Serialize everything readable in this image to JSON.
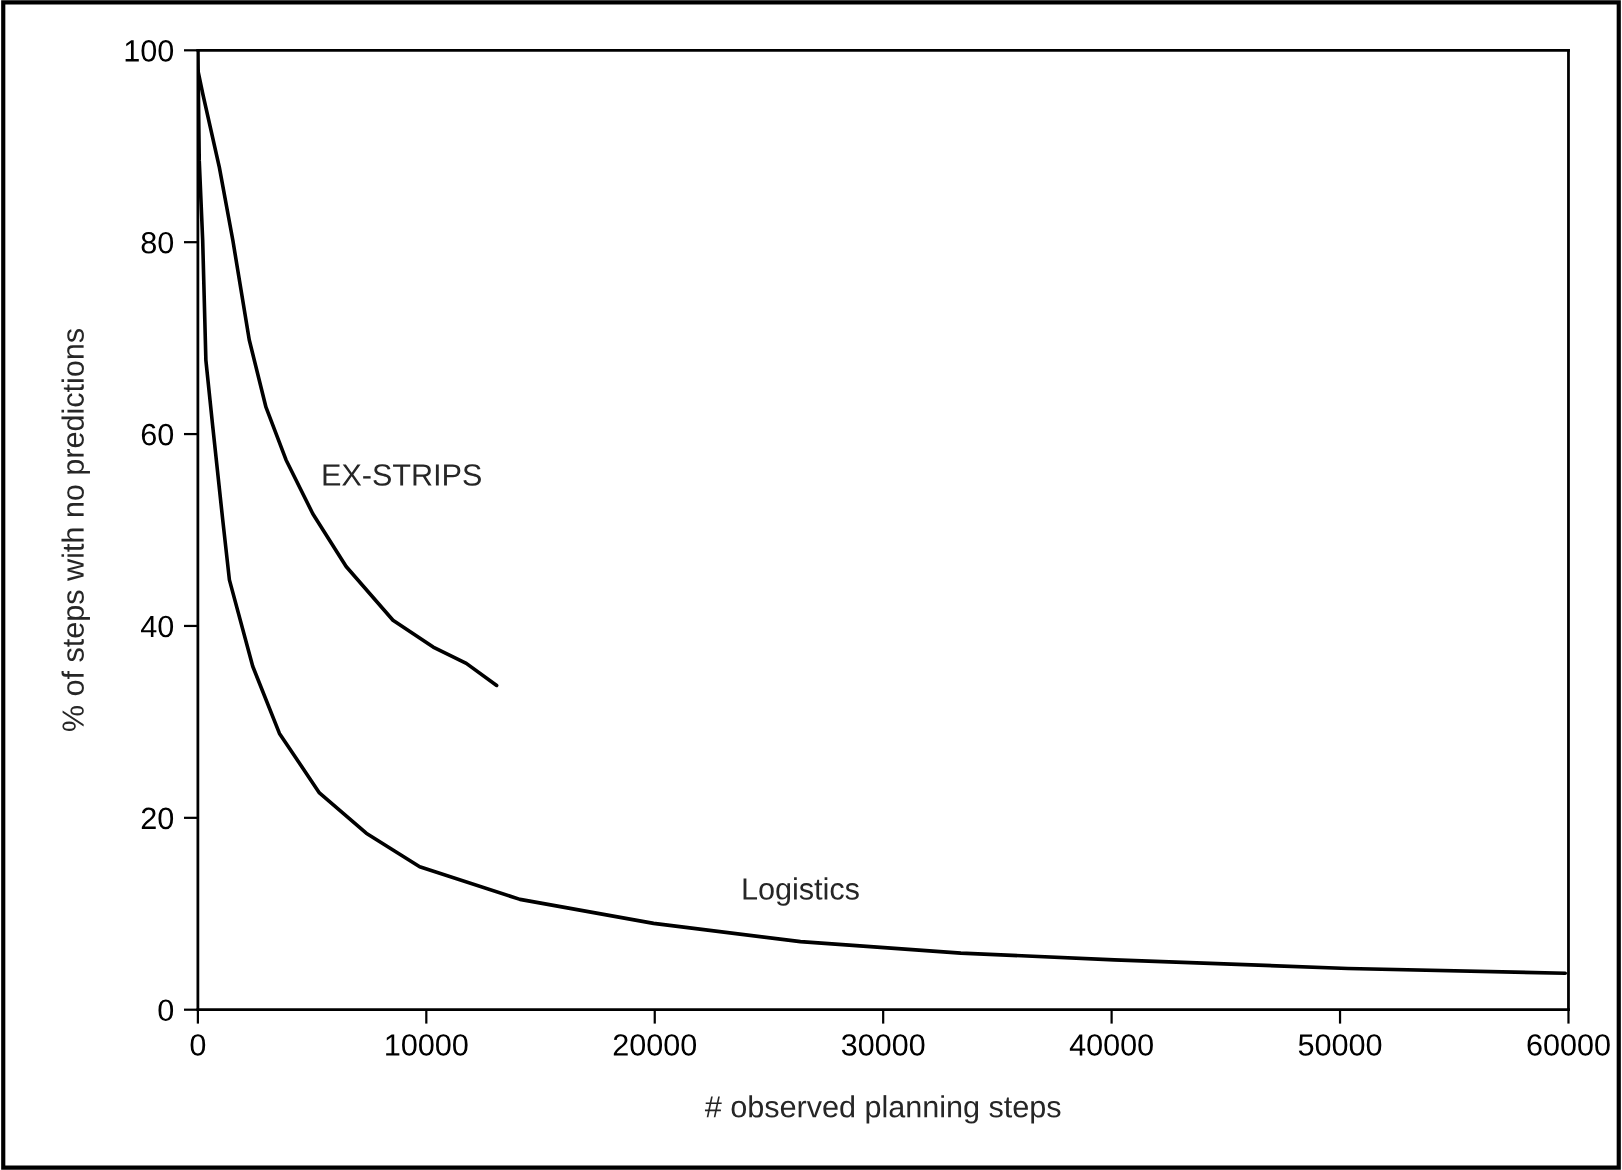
{
  "chart_data": {
    "type": "line",
    "xlabel": "# observed planning steps",
    "ylabel": "% of steps with no predictions",
    "xlim": [
      0,
      60000
    ],
    "ylim": [
      0,
      100
    ],
    "xticks": [
      0,
      10000,
      20000,
      30000,
      40000,
      50000,
      60000
    ],
    "yticks": [
      0,
      20,
      40,
      60,
      80,
      100
    ],
    "grid": false,
    "legend": false,
    "marker": "none",
    "line_style": "solid",
    "series": [
      {
        "name": "EX-STRIPS",
        "color": "#000000",
        "x": [
          0,
          210,
          940,
          1530,
          2250,
          2980,
          3860,
          5030,
          6490,
          8540,
          10300,
          11750,
          13080
        ],
        "values": [
          97.9,
          95.5,
          87.8,
          80.2,
          69.8,
          62.8,
          57.3,
          51.7,
          46.2,
          40.6,
          37.8,
          36.1,
          33.8
        ]
      },
      {
        "name": "Logistics",
        "color": "#000000",
        "x": [
          0,
          60,
          210,
          350,
          650,
          1090,
          1380,
          2400,
          3570,
          5320,
          7370,
          9710,
          14100,
          19950,
          26380,
          33400,
          40120,
          50350,
          59860
        ],
        "values": [
          100,
          88.5,
          80.2,
          67.7,
          60.8,
          51,
          44.8,
          35.8,
          28.8,
          22.6,
          18.4,
          14.9,
          11.5,
          9.0,
          7.1,
          5.9,
          5.2,
          4.3,
          3.8
        ]
      }
    ]
  }
}
